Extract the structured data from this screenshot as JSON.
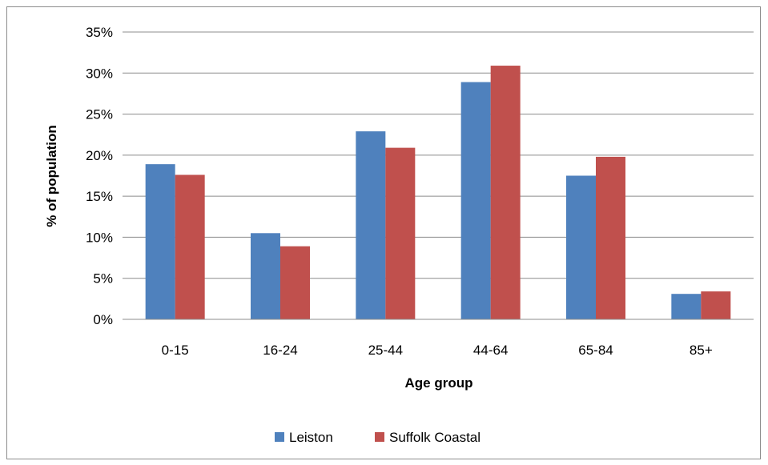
{
  "chart_data": {
    "type": "bar",
    "title": "",
    "xlabel": "Age group",
    "ylabel": "% of population",
    "categories": [
      "0-15",
      "16-24",
      "25-44",
      "44-64",
      "65-84",
      "85+"
    ],
    "series": [
      {
        "name": "Leiston",
        "color": "#4f81bd",
        "values": [
          18.9,
          10.5,
          22.9,
          28.9,
          17.5,
          3.1
        ]
      },
      {
        "name": "Suffolk Coastal",
        "color": "#c0504d",
        "values": [
          17.6,
          8.9,
          20.9,
          30.9,
          19.8,
          3.4
        ]
      }
    ],
    "ylim": [
      0,
      35
    ],
    "yticks": [
      "0%",
      "5%",
      "10%",
      "15%",
      "20%",
      "25%",
      "30%",
      "35%"
    ],
    "grid": true,
    "legend_position": "bottom"
  }
}
